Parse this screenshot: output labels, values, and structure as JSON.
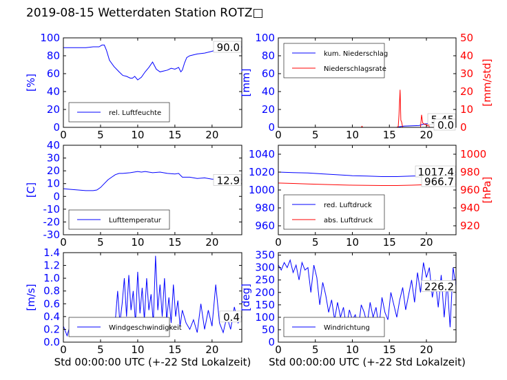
{
  "title": "2019-08-15 Wetterdaten Station ROTZ□",
  "colors": {
    "blue": "#0000ff",
    "red": "#ff0000",
    "axis": "#000000",
    "legend_border": "#000000"
  },
  "chart_data": [
    {
      "type": "line",
      "ylabel": "[%]",
      "xlim": [
        0,
        24
      ],
      "ylim": [
        0,
        100
      ],
      "xticks": [
        0,
        5,
        10,
        15,
        20
      ],
      "yticks": [
        0,
        20,
        40,
        60,
        80,
        100
      ],
      "legend_location": "lower-left",
      "value_label": "90.0",
      "series": [
        {
          "name": "rel. Luftfeuchte",
          "color": "#0000ff",
          "x": [
            0,
            1,
            2,
            3,
            4,
            4.8,
            5.2,
            5.5,
            5.8,
            6.2,
            6.8,
            7.5,
            8,
            8.5,
            9,
            9.3,
            9.6,
            10,
            10.5,
            11,
            11.5,
            12,
            12.5,
            13,
            13.5,
            14,
            14.5,
            15,
            15.5,
            15.8,
            16,
            16.3,
            16.6,
            17,
            18,
            19,
            20,
            21,
            22,
            23,
            24
          ],
          "y": [
            89,
            89,
            89,
            89,
            90,
            90,
            92,
            92,
            86,
            75,
            68,
            62,
            58,
            57,
            55,
            55,
            57,
            53,
            56,
            62,
            67,
            73,
            65,
            62,
            63,
            64,
            66,
            65,
            67,
            62,
            64,
            72,
            78,
            80,
            82,
            83,
            85,
            88,
            90,
            90,
            90
          ]
        }
      ]
    },
    {
      "type": "line",
      "ylabel": "[mm]",
      "ylabel2": "[mm/std]",
      "xlim": [
        0,
        24
      ],
      "ylim": [
        0,
        100
      ],
      "ylim2": [
        0,
        50
      ],
      "xticks": [
        0,
        5,
        10,
        15,
        20
      ],
      "yticks": [
        0,
        20,
        40,
        60,
        80,
        100
      ],
      "yticks2": [
        0,
        10,
        20,
        30,
        40,
        50
      ],
      "legend_location": "upper-left",
      "value_label": "5.45",
      "value_label2": "0.0",
      "series": [
        {
          "name": "kum. Niederschlag",
          "color": "#0000ff",
          "axis": "left",
          "x": [
            0,
            11,
            16,
            16.3,
            17,
            19,
            19.6,
            20,
            21,
            22,
            23,
            24
          ],
          "y": [
            0,
            0,
            0,
            0.5,
            1.5,
            2,
            3.5,
            4,
            4.8,
            5.2,
            5.4,
            5.45
          ]
        },
        {
          "name": "Niederschlagsrate",
          "color": "#ff0000",
          "axis": "right",
          "x": [
            0,
            11.2,
            11.3,
            11.4,
            16,
            16.2,
            16.3,
            16.45,
            16.55,
            16.65,
            16.8,
            19.2,
            19.35,
            19.5,
            19.65,
            19.8,
            19.95,
            20.1,
            20.25,
            20.4,
            21,
            21.2,
            21.4,
            21.6,
            22,
            24
          ],
          "y": [
            0,
            0,
            0.6,
            0,
            0,
            0.5,
            7,
            21,
            4,
            3,
            0,
            0,
            7,
            2.5,
            2,
            1.5,
            1.8,
            0.8,
            2,
            0,
            0,
            2,
            0.5,
            1.5,
            0,
            0
          ]
        }
      ]
    },
    {
      "type": "line",
      "ylabel": "[C]",
      "xlim": [
        0,
        24
      ],
      "ylim": [
        -30,
        40
      ],
      "xticks": [
        0,
        5,
        10,
        15,
        20
      ],
      "yticks": [
        -30,
        -20,
        -10,
        0,
        10,
        20,
        30,
        40
      ],
      "legend_location": "lower-left",
      "value_label": "12.9",
      "series": [
        {
          "name": "Lufttemperatur",
          "color": "#0000ff",
          "x": [
            0,
            1,
            2,
            3,
            4,
            4.5,
            5,
            5.5,
            6,
            6.5,
            7,
            7.5,
            8,
            9,
            10,
            10.5,
            11,
            12,
            13,
            14,
            15,
            15.5,
            16,
            17,
            18,
            19,
            20,
            21,
            22,
            23,
            24
          ],
          "y": [
            6,
            5.5,
            5,
            4.5,
            4.5,
            5,
            7,
            10,
            13,
            15,
            17,
            18,
            18,
            18.5,
            19.5,
            19,
            19.5,
            18.5,
            19,
            18,
            17.5,
            18,
            15,
            15,
            14,
            14.5,
            13.5,
            13.5,
            13,
            13,
            12.9
          ]
        }
      ]
    },
    {
      "type": "line",
      "ylabel2": "[hPa]",
      "xlim": [
        0,
        24
      ],
      "ylim": [
        950,
        1050
      ],
      "ylim2": [
        910,
        1010
      ],
      "xticks": [
        0,
        5,
        10,
        15,
        20
      ],
      "yticks": [
        960,
        980,
        1000,
        1020,
        1040
      ],
      "yticks2": [
        920,
        940,
        960,
        980,
        1000
      ],
      "legend_location": "lower-left",
      "value_label": "1017.4",
      "value_label2": "966.7",
      "series": [
        {
          "name": "red. Luftdruck",
          "color": "#0000ff",
          "axis": "left",
          "x": [
            0,
            2,
            4,
            6,
            8,
            10,
            12,
            14,
            16,
            18,
            20,
            22,
            24
          ],
          "y": [
            1020,
            1019.5,
            1019,
            1018,
            1017,
            1016,
            1015.5,
            1015,
            1015,
            1015.5,
            1016,
            1016.5,
            1017.4
          ]
        },
        {
          "name": "abs. Luftdruck",
          "color": "#ff0000",
          "axis": "right",
          "x": [
            0,
            2,
            4,
            6,
            8,
            10,
            12,
            14,
            16,
            18,
            20,
            22,
            24
          ],
          "y": [
            967.8,
            967.3,
            966.8,
            966.2,
            965.8,
            965.4,
            965.2,
            965.0,
            965.0,
            965.4,
            965.9,
            966.3,
            966.7
          ]
        }
      ]
    },
    {
      "type": "line",
      "ylabel": "[m/s]",
      "xlabel": "Std 00:00:00 UTC (+-22 Std Lokalzeit)",
      "xlim": [
        0,
        24
      ],
      "ylim": [
        0,
        1.4
      ],
      "xticks": [
        0,
        5,
        10,
        15,
        20
      ],
      "yticks": [
        0.0,
        0.2,
        0.4,
        0.6,
        0.8,
        1.0,
        1.2,
        1.4
      ],
      "legend_location": "lower-left",
      "value_label": "0.4",
      "series": [
        {
          "name": "Windgeschwindigkeit",
          "color": "#0000ff",
          "x": [
            0,
            0.5,
            1,
            1.5,
            2,
            2.5,
            3,
            3.5,
            4,
            4.5,
            5,
            5.5,
            6,
            6.5,
            7,
            7.3,
            7.6,
            7.9,
            8.2,
            8.5,
            8.8,
            9.1,
            9.4,
            9.7,
            10,
            10.3,
            10.6,
            10.9,
            11.2,
            11.5,
            11.8,
            12.1,
            12.4,
            12.7,
            13,
            13.3,
            13.6,
            13.9,
            14.2,
            14.5,
            14.8,
            15.1,
            15.4,
            15.7,
            16,
            16.5,
            17,
            17.5,
            18,
            18.5,
            19,
            19.5,
            20,
            20.5,
            21,
            21.5,
            22,
            22.5,
            23,
            23.5,
            24
          ],
          "y": [
            0.25,
            0.1,
            0.3,
            0.2,
            0.35,
            0.15,
            0.3,
            0.2,
            0.25,
            0.15,
            0.3,
            0.12,
            0.2,
            0.15,
            0.35,
            0.8,
            0.3,
            0.6,
            1.0,
            0.4,
            1.05,
            0.5,
            0.8,
            0.3,
            1.1,
            0.45,
            0.85,
            0.35,
            1.0,
            0.5,
            0.75,
            0.3,
            1.35,
            0.5,
            0.9,
            0.4,
            1.0,
            0.35,
            0.7,
            0.3,
            0.9,
            0.4,
            0.65,
            0.25,
            0.5,
            0.3,
            0.2,
            0.35,
            0.15,
            0.6,
            0.2,
            0.5,
            0.25,
            0.9,
            0.3,
            0.15,
            0.4,
            0.2,
            0.55,
            0.3,
            0.4
          ]
        }
      ]
    },
    {
      "type": "line",
      "ylabel": "[deg]",
      "xlabel": "Std 00:00:00 UTC (+-22 Std Lokalzeit)",
      "xlim": [
        0,
        24
      ],
      "ylim": [
        0,
        360
      ],
      "xticks": [
        0,
        5,
        10,
        15,
        20
      ],
      "yticks": [
        0,
        50,
        100,
        150,
        200,
        250,
        300,
        350
      ],
      "legend_location": "lower-left",
      "value_label": "226.2",
      "series": [
        {
          "name": "Windrichtung",
          "color": "#0000ff",
          "x": [
            0,
            0.4,
            0.8,
            1.2,
            1.6,
            2,
            2.4,
            2.8,
            3.2,
            3.6,
            4,
            4.4,
            4.8,
            5.2,
            5.6,
            6,
            6.4,
            6.8,
            7.2,
            7.6,
            8,
            8.4,
            8.8,
            9.2,
            9.6,
            10,
            10.4,
            10.8,
            11.2,
            11.6,
            12,
            12.4,
            12.8,
            13.2,
            13.6,
            14,
            14.4,
            14.8,
            15.2,
            15.6,
            16,
            16.4,
            16.8,
            17.2,
            17.6,
            18,
            18.4,
            18.8,
            19.2,
            19.6,
            20,
            20.4,
            20.8,
            21.2,
            21.6,
            22,
            22.4,
            22.8,
            23.2,
            23.6,
            24
          ],
          "y": [
            310,
            290,
            320,
            300,
            330,
            280,
            310,
            250,
            320,
            290,
            300,
            200,
            310,
            260,
            150,
            240,
            190,
            120,
            170,
            90,
            160,
            100,
            140,
            60,
            130,
            90,
            110,
            50,
            150,
            120,
            70,
            160,
            100,
            140,
            60,
            180,
            120,
            90,
            200,
            150,
            100,
            170,
            220,
            130,
            190,
            250,
            160,
            280,
            200,
            320,
            260,
            300,
            180,
            250,
            140,
            270,
            100,
            240,
            60,
            300,
            226
          ]
        }
      ]
    }
  ]
}
